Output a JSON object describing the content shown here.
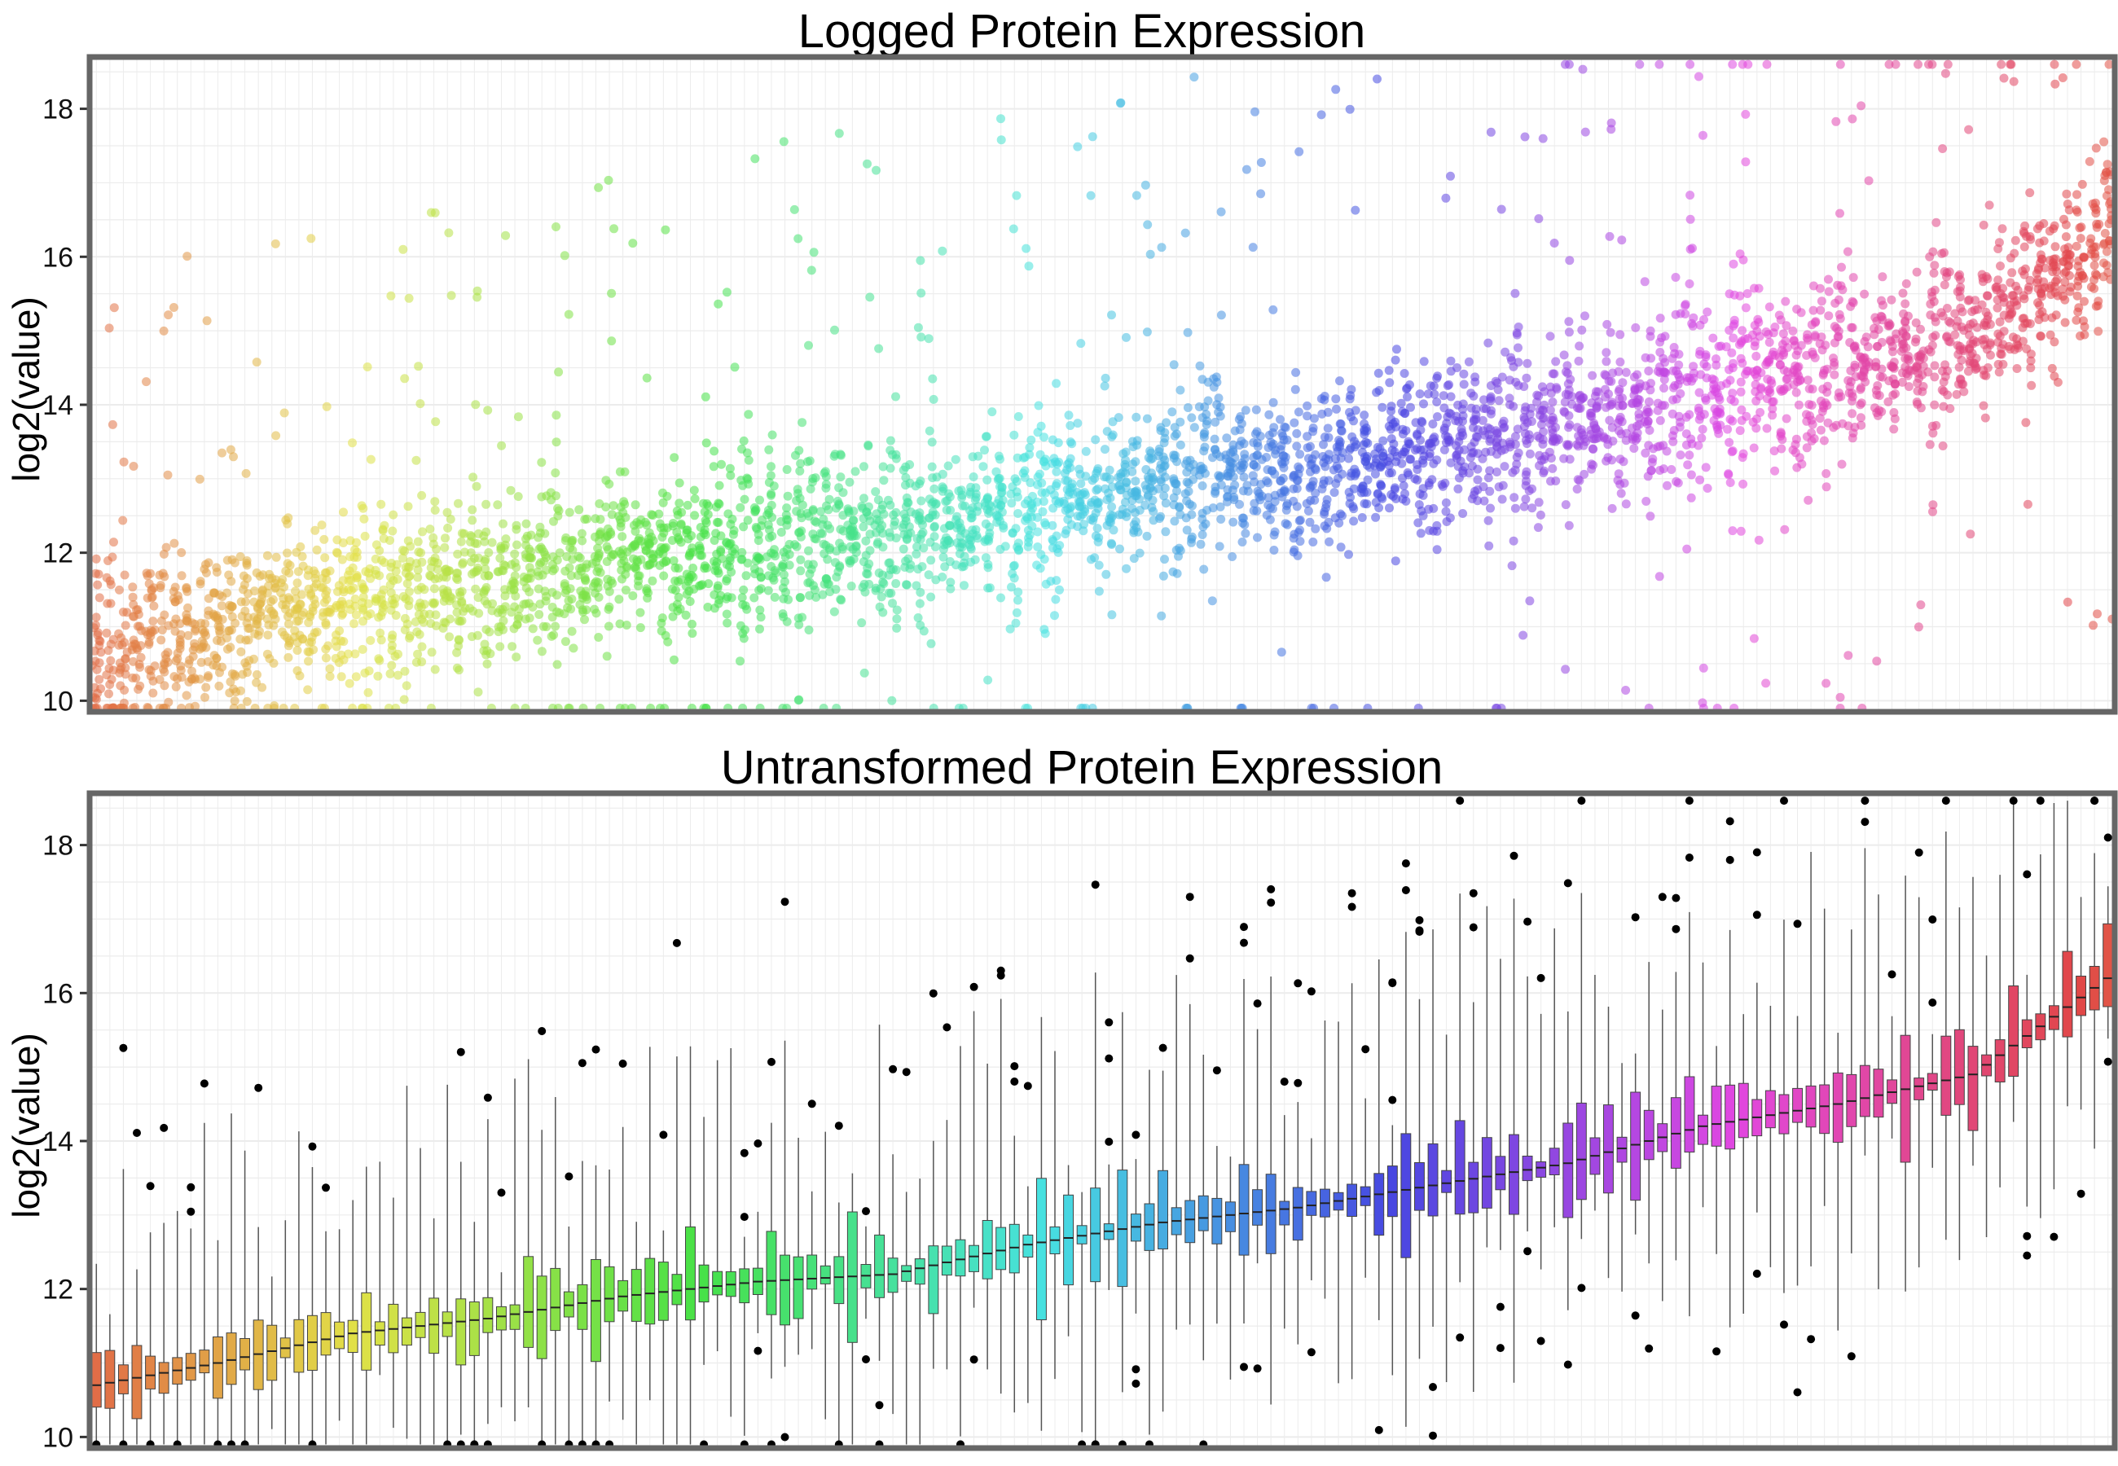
{
  "chart_data": [
    {
      "type": "scatter",
      "title": "Logged Protein Expression",
      "xlabel": "",
      "ylabel": "log2(value)",
      "ylim": [
        9.85,
        18.7
      ],
      "yticks": [
        10,
        12,
        14,
        16,
        18
      ],
      "grid": true,
      "legend": "none",
      "groups": 150,
      "points_per_group": 30,
      "color_scheme": "hue gradient, red to orange to green to cyan to blue to violet to pink",
      "group_medians": {
        "x": [
          1,
          10,
          20,
          30,
          40,
          50,
          60,
          70,
          80,
          90,
          100,
          110,
          120,
          130,
          140,
          150
        ],
        "y": [
          10.6,
          11.0,
          11.4,
          11.6,
          11.9,
          12.1,
          12.25,
          12.6,
          12.9,
          13.1,
          13.4,
          13.7,
          14.2,
          14.5,
          14.9,
          16.3
        ]
      }
    },
    {
      "type": "box",
      "title": "Untransformed Protein Expression",
      "xlabel": "",
      "ylabel": "log2(value)",
      "ylim": [
        9.85,
        18.7
      ],
      "yticks": [
        10,
        12,
        14,
        16,
        18
      ],
      "grid": true,
      "legend": "none",
      "groups": 150,
      "outlier_color": "#000000",
      "color_scheme": "hue gradient, red to orange to green to cyan to blue to violet to pink",
      "group_medians": {
        "x": [
          1,
          10,
          20,
          30,
          40,
          50,
          60,
          70,
          80,
          90,
          100,
          110,
          120,
          130,
          140,
          150
        ],
        "y": [
          10.7,
          11.0,
          11.4,
          11.6,
          11.9,
          12.1,
          12.2,
          12.6,
          12.9,
          13.1,
          13.4,
          13.7,
          14.2,
          14.5,
          14.9,
          16.2
        ]
      }
    }
  ],
  "colors": {
    "panel_border": "#666666",
    "grid": "#ececec",
    "hue_start": "#f8766d",
    "hue_end": "#f8766d"
  }
}
